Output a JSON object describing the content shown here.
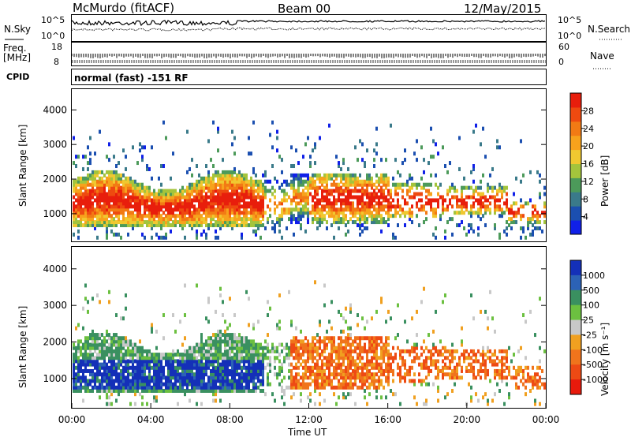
{
  "header": {
    "station": "McMurdo (fitACF)",
    "beam": "Beam 00",
    "date": "12/May/2015"
  },
  "top_panel": {
    "left_label": "N.Sky",
    "right_label": "N.Search",
    "left_ticks": [
      "10^5",
      "10^0"
    ],
    "right_ticks": [
      "10^5",
      "10^0"
    ]
  },
  "freq_panel": {
    "left_label_line1": "Freq.",
    "left_label_line2": "[MHz]",
    "right_label": "Nave",
    "left_ticks": [
      "18",
      "8"
    ],
    "right_ticks": [
      "60",
      "0"
    ]
  },
  "cpid": {
    "label": "CPID",
    "text": "normal (fast) -151 RF"
  },
  "chart_data": [
    {
      "type": "heatmap",
      "name": "power",
      "ylabel": "Slant Range [km]",
      "ylim": [
        200,
        4600
      ],
      "yticks": [
        "1000",
        "2000",
        "3000",
        "4000"
      ],
      "colorbar_label": "Power [dB]",
      "colorbar_ticks": [
        "4",
        "8",
        "12",
        "16",
        "20",
        "24",
        "28"
      ],
      "colorbar_colors": [
        "#1020e8",
        "#1b4fb0",
        "#3a7a8a",
        "#4c9a5a",
        "#a4c43c",
        "#f0c830",
        "#f7a21c",
        "#f27a14",
        "#ee4a10",
        "#e81e0c"
      ]
    },
    {
      "type": "heatmap",
      "name": "velocity",
      "ylabel": "Slant Range [km]",
      "ylim": [
        200,
        4600
      ],
      "yticks": [
        "1000",
        "2000",
        "3000",
        "4000"
      ],
      "xlabel": "Time UT",
      "xticks": [
        "00:00",
        "04:00",
        "08:00",
        "12:00",
        "16:00",
        "20:00",
        "00:00"
      ],
      "colorbar_label": "Velocity [m s⁻¹]",
      "colorbar_ticks": [
        "1000",
        "500",
        "100",
        "25",
        "-25",
        "-100",
        "-500",
        "-1000"
      ],
      "colorbar_colors": [
        "#1430b8",
        "#2c62b6",
        "#3a9060",
        "#6cc040",
        "#c8c8c8",
        "#f0a020",
        "#f0741c",
        "#ee4a14",
        "#e81a0c"
      ]
    }
  ]
}
